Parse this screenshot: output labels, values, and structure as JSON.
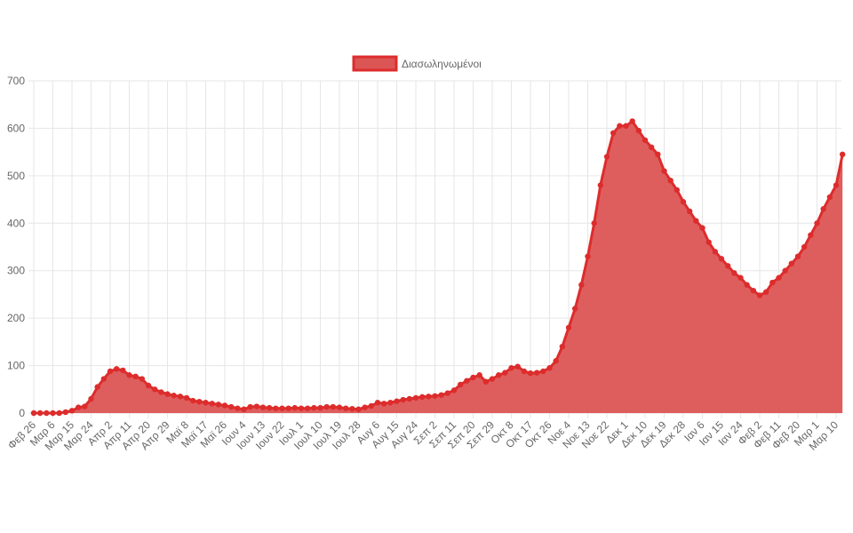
{
  "chart_data": {
    "type": "area",
    "title": "",
    "xlabel": "",
    "ylabel": "",
    "ylim": [
      0,
      700
    ],
    "yticks": [
      0,
      100,
      200,
      300,
      400,
      500,
      600,
      700
    ],
    "grid": true,
    "legend_position": "top",
    "colors": {
      "line": "#dd2c2c",
      "fill": "#dc5555",
      "grid": "#e6e6e6",
      "text": "#666666"
    },
    "xtick_dates": [
      "2020-02-26",
      "2020-03-06",
      "2020-03-15",
      "2020-03-24",
      "2020-04-02",
      "2020-04-11",
      "2020-04-20",
      "2020-04-29",
      "2020-05-08",
      "2020-05-17",
      "2020-05-26",
      "2020-06-04",
      "2020-06-13",
      "2020-06-22",
      "2020-07-01",
      "2020-07-10",
      "2020-07-19",
      "2020-07-28",
      "2020-08-06",
      "2020-08-15",
      "2020-08-24",
      "2020-09-02",
      "2020-09-11",
      "2020-09-20",
      "2020-09-29",
      "2020-10-08",
      "2020-10-17",
      "2020-10-26",
      "2020-11-04",
      "2020-11-13",
      "2020-11-22",
      "2020-12-01",
      "2020-12-10",
      "2020-12-19",
      "2020-12-28",
      "2021-01-06",
      "2021-01-15",
      "2021-01-24",
      "2021-02-02",
      "2021-02-11",
      "2021-02-20",
      "2021-03-01",
      "2021-03-10"
    ],
    "xtick_labels": [
      "Φεβ 26",
      "Μαρ 6",
      "Μαρ 15",
      "Μαρ 24",
      "Απρ 2",
      "Απρ 11",
      "Απρ 20",
      "Απρ 29",
      "Μαϊ 8",
      "Μαϊ 17",
      "Μαϊ 26",
      "Ιουν 4",
      "Ιουν 13",
      "Ιουν 22",
      "Ιουλ 1",
      "Ιουλ 10",
      "Ιουλ 19",
      "Ιουλ 28",
      "Αυγ 6",
      "Αυγ 15",
      "Αυγ 24",
      "Σεπ 2",
      "Σεπ 11",
      "Σεπ 20",
      "Σεπ 29",
      "Οκτ 8",
      "Οκτ 17",
      "Οκτ 26",
      "Νοε 4",
      "Νοε 13",
      "Νοε 22",
      "Δεκ 1",
      "Δεκ 10",
      "Δεκ 19",
      "Δεκ 28",
      "Ιαν 6",
      "Ιαν 15",
      "Ιαν 24",
      "Φεβ 2",
      "Φεβ 11",
      "Φεβ 20",
      "Μαρ 1",
      "Μαρ 10"
    ],
    "series": [
      {
        "name": "Διασωληνωμένοι",
        "x": [
          "2020-02-26",
          "2020-02-29",
          "2020-03-03",
          "2020-03-06",
          "2020-03-09",
          "2020-03-12",
          "2020-03-15",
          "2020-03-18",
          "2020-03-21",
          "2020-03-24",
          "2020-03-27",
          "2020-03-30",
          "2020-04-02",
          "2020-04-05",
          "2020-04-08",
          "2020-04-11",
          "2020-04-14",
          "2020-04-17",
          "2020-04-20",
          "2020-04-23",
          "2020-04-26",
          "2020-04-29",
          "2020-05-02",
          "2020-05-05",
          "2020-05-08",
          "2020-05-11",
          "2020-05-14",
          "2020-05-17",
          "2020-05-20",
          "2020-05-23",
          "2020-05-26",
          "2020-05-29",
          "2020-06-01",
          "2020-06-04",
          "2020-06-07",
          "2020-06-10",
          "2020-06-13",
          "2020-06-16",
          "2020-06-19",
          "2020-06-22",
          "2020-06-25",
          "2020-06-28",
          "2020-07-01",
          "2020-07-04",
          "2020-07-07",
          "2020-07-10",
          "2020-07-13",
          "2020-07-16",
          "2020-07-19",
          "2020-07-22",
          "2020-07-25",
          "2020-07-28",
          "2020-07-31",
          "2020-08-03",
          "2020-08-06",
          "2020-08-09",
          "2020-08-12",
          "2020-08-15",
          "2020-08-18",
          "2020-08-21",
          "2020-08-24",
          "2020-08-27",
          "2020-08-30",
          "2020-09-02",
          "2020-09-05",
          "2020-09-08",
          "2020-09-11",
          "2020-09-14",
          "2020-09-17",
          "2020-09-20",
          "2020-09-23",
          "2020-09-26",
          "2020-09-29",
          "2020-10-02",
          "2020-10-05",
          "2020-10-08",
          "2020-10-11",
          "2020-10-14",
          "2020-10-17",
          "2020-10-20",
          "2020-10-23",
          "2020-10-26",
          "2020-10-29",
          "2020-11-01",
          "2020-11-04",
          "2020-11-07",
          "2020-11-10",
          "2020-11-13",
          "2020-11-16",
          "2020-11-19",
          "2020-11-22",
          "2020-11-25",
          "2020-11-28",
          "2020-12-01",
          "2020-12-04",
          "2020-12-07",
          "2020-12-10",
          "2020-12-13",
          "2020-12-16",
          "2020-12-19",
          "2020-12-22",
          "2020-12-25",
          "2020-12-28",
          "2020-12-31",
          "2021-01-03",
          "2021-01-06",
          "2021-01-09",
          "2021-01-12",
          "2021-01-15",
          "2021-01-18",
          "2021-01-21",
          "2021-01-24",
          "2021-01-27",
          "2021-01-30",
          "2021-02-02",
          "2021-02-05",
          "2021-02-08",
          "2021-02-11",
          "2021-02-14",
          "2021-02-17",
          "2021-02-20",
          "2021-02-23",
          "2021-02-26",
          "2021-03-01",
          "2021-03-04",
          "2021-03-07",
          "2021-03-10",
          "2021-03-13"
        ],
        "values": [
          0,
          0,
          0,
          0,
          0,
          2,
          5,
          12,
          14,
          30,
          55,
          72,
          88,
          93,
          90,
          80,
          77,
          72,
          58,
          50,
          44,
          40,
          37,
          35,
          32,
          26,
          24,
          22,
          20,
          18,
          16,
          13,
          10,
          8,
          13,
          14,
          12,
          11,
          10,
          10,
          10,
          11,
          10,
          10,
          11,
          11,
          13,
          13,
          12,
          10,
          9,
          8,
          12,
          15,
          22,
          20,
          22,
          25,
          28,
          30,
          32,
          34,
          35,
          36,
          38,
          42,
          48,
          60,
          68,
          75,
          80,
          66,
          72,
          80,
          85,
          95,
          98,
          88,
          84,
          85,
          88,
          95,
          110,
          140,
          180,
          220,
          270,
          330,
          400,
          480,
          540,
          590,
          605,
          605,
          615,
          595,
          575,
          560,
          545,
          510,
          490,
          470,
          445,
          425,
          405,
          390,
          360,
          340,
          325,
          310,
          295,
          285,
          270,
          258,
          248,
          255,
          275,
          285,
          300,
          315,
          330,
          350,
          375,
          400,
          430,
          455,
          480,
          545
        ]
      }
    ]
  }
}
